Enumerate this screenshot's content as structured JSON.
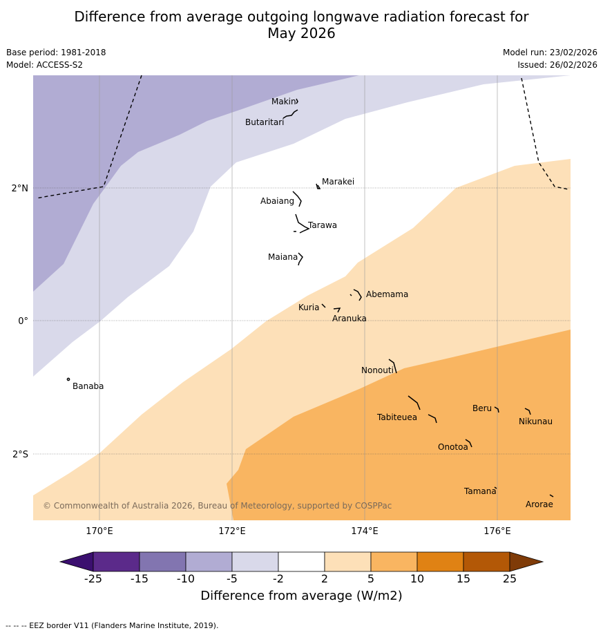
{
  "title": {
    "line1": "Difference from average outgoing longwave radiation forecast for",
    "line2": "May 2026"
  },
  "meta": {
    "base_period": "Base period: 1981-2018",
    "model": "Model: ACCESS-S2",
    "model_run": "Model run: 23/02/2026",
    "issued": "Issued: 26/02/2026"
  },
  "axes": {
    "lon_labels": [
      "170°E",
      "172°E",
      "174°E",
      "176°E"
    ],
    "lat_labels": [
      "2°N",
      "0°",
      "2°S"
    ]
  },
  "places": {
    "makin": "Makin",
    "butaritari": "Butaritari",
    "marakei": "Marakei",
    "abaiang": "Abaiang",
    "tarawa": "Tarawa",
    "maiana": "Maiana",
    "abemama": "Abemama",
    "kuria": "Kuria",
    "aranuka": "Aranuka",
    "banaba": "Banaba",
    "nonouti": "Nonouti",
    "tabiteuea": "Tabiteuea",
    "beru": "Beru",
    "nikunau": "Nikunau",
    "onotoa": "Onotoa",
    "tamana": "Tamana",
    "arorae": "Arorae"
  },
  "copyright": "© Commonwealth of Australia 2026, Bureau of Meteorology, supported by COSPPac",
  "colorbar": {
    "ticks": [
      "-25",
      "-15",
      "-10",
      "-5",
      "-2",
      "2",
      "5",
      "10",
      "15",
      "25"
    ],
    "colors": [
      "#3b0f6f",
      "#5b2a8a",
      "#8275b0",
      "#b1acd3",
      "#d9d9ea",
      "#ffffff",
      "#fde0b8",
      "#f9b561",
      "#e08214",
      "#b35806",
      "#7f3b08"
    ],
    "title": "Difference from average (W/m2)"
  },
  "footnote": "--  --  -- EEZ border V11 (Flanders Marine Institute, 2019)."
}
